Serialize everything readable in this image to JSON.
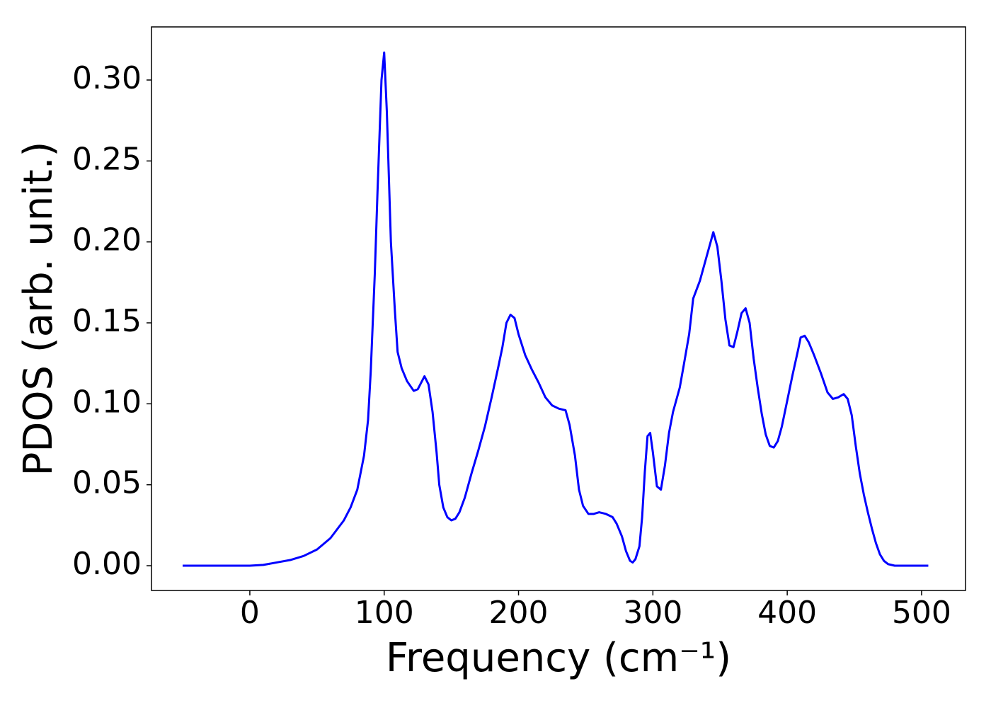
{
  "chart_data": {
    "type": "line",
    "xlabel": "Frequency (cm⁻¹)",
    "ylabel": "PDOS (arb. unit.)",
    "color": "#0000ff",
    "x": [
      -50,
      -40,
      -30,
      -20,
      -10,
      0,
      10,
      20,
      30,
      40,
      50,
      60,
      70,
      75,
      80,
      85,
      88,
      90,
      93,
      95,
      98,
      100,
      102,
      105,
      108,
      110,
      113,
      117,
      122,
      125,
      130,
      133,
      136,
      139,
      141,
      144,
      147,
      150,
      153,
      156,
      160,
      165,
      170,
      175,
      180,
      185,
      188,
      191,
      194,
      197,
      200,
      205,
      210,
      215,
      220,
      225,
      230,
      235,
      238,
      242,
      245,
      248,
      252,
      256,
      260,
      265,
      270,
      273,
      277,
      280,
      283,
      285,
      287,
      290,
      292,
      294,
      296,
      298,
      300,
      303,
      306,
      309,
      312,
      315,
      320,
      323,
      327,
      330,
      335,
      340,
      343,
      345,
      348,
      351,
      354,
      357,
      360,
      363,
      366,
      369,
      372,
      375,
      378,
      381,
      384,
      387,
      390,
      393,
      396,
      400,
      404,
      408,
      410,
      413,
      416,
      420,
      425,
      430,
      434,
      438,
      442,
      445,
      448,
      451,
      454,
      457,
      460,
      463,
      466,
      469,
      472,
      475,
      480,
      490,
      505
    ],
    "values": [
      0,
      0,
      0,
      0,
      0,
      0,
      0.0005,
      0.002,
      0.0035,
      0.006,
      0.01,
      0.017,
      0.028,
      0.036,
      0.047,
      0.068,
      0.09,
      0.12,
      0.18,
      0.23,
      0.3,
      0.317,
      0.28,
      0.2,
      0.157,
      0.132,
      0.122,
      0.114,
      0.108,
      0.109,
      0.117,
      0.112,
      0.095,
      0.07,
      0.05,
      0.036,
      0.03,
      0.028,
      0.029,
      0.033,
      0.042,
      0.057,
      0.071,
      0.086,
      0.104,
      0.123,
      0.135,
      0.15,
      0.155,
      0.153,
      0.143,
      0.13,
      0.121,
      0.113,
      0.104,
      0.099,
      0.097,
      0.096,
      0.087,
      0.068,
      0.047,
      0.037,
      0.032,
      0.032,
      0.033,
      0.032,
      0.03,
      0.026,
      0.018,
      0.009,
      0.003,
      0.002,
      0.004,
      0.012,
      0.03,
      0.058,
      0.08,
      0.082,
      0.07,
      0.049,
      0.047,
      0.062,
      0.082,
      0.095,
      0.11,
      0.124,
      0.143,
      0.165,
      0.176,
      0.191,
      0.2,
      0.206,
      0.197,
      0.176,
      0.152,
      0.136,
      0.135,
      0.145,
      0.156,
      0.159,
      0.15,
      0.128,
      0.11,
      0.094,
      0.081,
      0.074,
      0.073,
      0.077,
      0.086,
      0.102,
      0.118,
      0.133,
      0.141,
      0.142,
      0.138,
      0.13,
      0.119,
      0.107,
      0.103,
      0.104,
      0.106,
      0.103,
      0.093,
      0.074,
      0.057,
      0.044,
      0.033,
      0.023,
      0.014,
      0.007,
      0.003,
      0.001,
      0,
      0,
      0
    ],
    "xlim": [
      -73.2,
      532.7
    ],
    "ylim": [
      -0.0153,
      0.3328
    ],
    "xticks": [
      0,
      100,
      200,
      300,
      400,
      500
    ],
    "yticks": [
      {
        "value": 0,
        "label": "0.00"
      },
      {
        "value": 0.05,
        "label": "0.05"
      },
      {
        "value": 0.1,
        "label": "0.10"
      },
      {
        "value": 0.15,
        "label": "0.15"
      },
      {
        "value": 0.2,
        "label": "0.20"
      },
      {
        "value": 0.25,
        "label": "0.25"
      },
      {
        "value": 0.3,
        "label": "0.30"
      }
    ],
    "grid": false
  }
}
